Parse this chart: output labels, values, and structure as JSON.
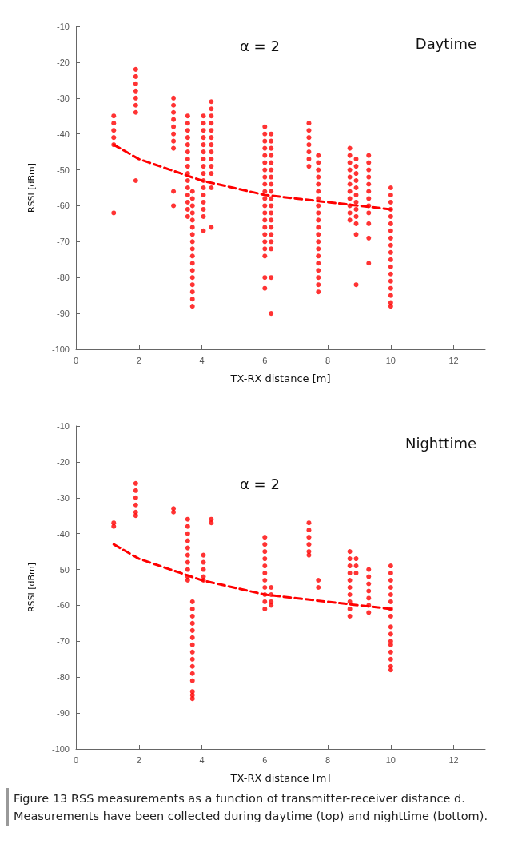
{
  "chart_data": [
    {
      "type": "scatter",
      "title": "Daytime",
      "xlabel": "TX-RX distance [m]",
      "ylabel": "RSSI [dBm]",
      "annotations": [
        "α = 2"
      ],
      "xlim": [
        0,
        13
      ],
      "xticks": [
        0,
        2,
        4,
        6,
        8,
        10,
        12
      ],
      "ylim": [
        -100,
        -10
      ],
      "yticks": [
        -100,
        -90,
        -80,
        -70,
        -60,
        -50,
        -40,
        -30,
        -20,
        -10
      ],
      "grid": false,
      "series": [
        {
          "marker": "circle",
          "color": "#ff0000",
          "x": [
            1.2,
            1.2,
            1.2,
            1.2,
            1.2,
            1.2,
            1.9,
            1.9,
            1.9,
            1.9,
            1.9,
            1.9,
            1.9,
            1.9,
            3.1,
            3.1,
            3.1,
            3.1,
            3.1,
            3.1,
            3.1,
            3.1,
            3.1,
            3.1,
            3.55,
            3.55,
            3.55,
            3.55,
            3.55,
            3.55,
            3.55,
            3.55,
            3.55,
            3.55,
            3.55,
            3.55,
            3.55,
            3.55,
            3.55,
            3.7,
            3.7,
            3.7,
            3.7,
            3.7,
            3.7,
            3.7,
            3.7,
            3.7,
            3.7,
            3.7,
            3.7,
            3.7,
            3.7,
            3.7,
            3.7,
            3.7,
            4.05,
            4.05,
            4.05,
            4.05,
            4.05,
            4.05,
            4.05,
            4.05,
            4.05,
            4.05,
            4.05,
            4.05,
            4.05,
            4.05,
            4.05,
            4.05,
            4.3,
            4.3,
            4.3,
            4.3,
            4.3,
            4.3,
            4.3,
            4.3,
            4.3,
            4.3,
            4.3,
            4.3,
            4.3,
            6,
            6,
            6,
            6,
            6,
            6,
            6,
            6,
            6,
            6,
            6,
            6,
            6,
            6,
            6,
            6,
            6,
            6,
            6,
            6,
            6,
            6.2,
            6.2,
            6.2,
            6.2,
            6.2,
            6.2,
            6.2,
            6.2,
            6.2,
            6.2,
            6.2,
            6.2,
            6.2,
            6.2,
            6.2,
            6.2,
            6.2,
            6.2,
            6.2,
            7.4,
            7.4,
            7.4,
            7.4,
            7.4,
            7.4,
            7.4,
            7.7,
            7.7,
            7.7,
            7.7,
            7.7,
            7.7,
            7.7,
            7.7,
            7.7,
            7.7,
            7.7,
            7.7,
            7.7,
            7.7,
            7.7,
            7.7,
            7.7,
            7.7,
            7.7,
            7.7,
            8.7,
            8.7,
            8.7,
            8.7,
            8.7,
            8.7,
            8.7,
            8.7,
            8.7,
            8.7,
            8.7,
            8.9,
            8.9,
            8.9,
            8.9,
            8.9,
            8.9,
            8.9,
            8.9,
            8.9,
            8.9,
            8.9,
            8.9,
            9.3,
            9.3,
            9.3,
            9.3,
            9.3,
            9.3,
            9.3,
            9.3,
            9.3,
            9.3,
            9.3,
            9.3,
            10,
            10,
            10,
            10,
            10,
            10,
            10,
            10,
            10,
            10,
            10,
            10,
            10,
            10,
            10,
            10,
            10,
            10
          ],
          "values": [
            -35,
            -37,
            -39,
            -41,
            -43,
            -62,
            -22,
            -24,
            -26,
            -28,
            -30,
            -32,
            -34,
            -53,
            -30,
            -32,
            -34,
            -36,
            -38,
            -40,
            -42,
            -44,
            -56,
            -60,
            -35,
            -37,
            -39,
            -41,
            -43,
            -45,
            -47,
            -49,
            -51,
            -53,
            -55,
            -57,
            -59,
            -61,
            -63,
            -56,
            -58,
            -60,
            -62,
            -64,
            -66,
            -68,
            -70,
            -72,
            -74,
            -76,
            -78,
            -80,
            -82,
            -84,
            -86,
            -88,
            -35,
            -37,
            -39,
            -41,
            -43,
            -45,
            -47,
            -49,
            -51,
            -53,
            -55,
            -57,
            -59,
            -61,
            -63,
            -67,
            -31,
            -33,
            -35,
            -37,
            -39,
            -41,
            -43,
            -45,
            -47,
            -49,
            -51,
            -55,
            -66,
            -38,
            -40,
            -42,
            -44,
            -46,
            -48,
            -50,
            -52,
            -54,
            -56,
            -58,
            -60,
            -62,
            -64,
            -66,
            -68,
            -70,
            -72,
            -74,
            -80,
            -83,
            -40,
            -42,
            -44,
            -46,
            -48,
            -50,
            -52,
            -54,
            -56,
            -58,
            -60,
            -62,
            -64,
            -66,
            -68,
            -70,
            -72,
            -80,
            -90,
            -37,
            -39,
            -41,
            -43,
            -45,
            -47,
            -49,
            -46,
            -48,
            -50,
            -52,
            -54,
            -56,
            -58,
            -60,
            -62,
            -64,
            -66,
            -68,
            -70,
            -72,
            -74,
            -76,
            -78,
            -80,
            -82,
            -84,
            -44,
            -46,
            -48,
            -50,
            -52,
            -54,
            -56,
            -58,
            -60,
            -62,
            -64,
            -47,
            -49,
            -51,
            -53,
            -55,
            -57,
            -59,
            -61,
            -63,
            -65,
            -68,
            -82,
            -46,
            -48,
            -50,
            -52,
            -54,
            -56,
            -58,
            -60,
            -62,
            -65,
            -69,
            -76,
            -55,
            -57,
            -59,
            -61,
            -63,
            -65,
            -67,
            -69,
            -71,
            -73,
            -75,
            -77,
            -79,
            -81,
            -83,
            -85,
            -87,
            -88
          ]
        },
        {
          "type": "line",
          "marker": "none",
          "line_style": "dashed",
          "color": "#ff0000",
          "x": [
            1.2,
            2,
            3,
            4,
            5,
            6,
            7,
            8,
            9,
            10
          ],
          "values": [
            -43,
            -47,
            -50,
            -53,
            -55,
            -57,
            -58,
            -59,
            -60,
            -61
          ]
        }
      ]
    },
    {
      "type": "scatter",
      "title": "Nighttime",
      "xlabel": "TX-RX distance [m]",
      "ylabel": "RSSI [dBm]",
      "annotations": [
        "α = 2",
        "Figure 13 RSS measurements as a function of transmitter-receiver distance d. Measurements have been collected during daytime (top) and nighttime (bottom)."
      ],
      "xlim": [
        0,
        13
      ],
      "xticks": [
        0,
        2,
        4,
        6,
        8,
        10,
        12
      ],
      "ylim": [
        -100,
        -10
      ],
      "yticks": [
        -100,
        -90,
        -80,
        -70,
        -60,
        -50,
        -40,
        -30,
        -20,
        -10
      ],
      "grid": false,
      "series": [
        {
          "marker": "circle",
          "color": "#ff0000",
          "x": [
            1.2,
            1.2,
            1.9,
            1.9,
            1.9,
            1.9,
            1.9,
            1.9,
            3.1,
            3.1,
            3.55,
            3.55,
            3.55,
            3.55,
            3.55,
            3.55,
            3.55,
            3.55,
            3.55,
            3.55,
            3.7,
            3.7,
            3.7,
            3.7,
            3.7,
            3.7,
            3.7,
            3.7,
            3.7,
            3.7,
            3.7,
            3.7,
            3.7,
            3.7,
            3.7,
            4.05,
            4.05,
            4.05,
            4.05,
            4.05,
            4.3,
            4.3,
            6,
            6,
            6,
            6,
            6,
            6,
            6,
            6,
            6,
            6,
            6,
            6.2,
            6.2,
            6.2,
            6.2,
            7.4,
            7.4,
            7.4,
            7.4,
            7.4,
            7.4,
            7.7,
            7.7,
            8.7,
            8.7,
            8.7,
            8.7,
            8.7,
            8.7,
            8.7,
            8.7,
            8.7,
            8.7,
            8.9,
            8.9,
            8.9,
            9.3,
            9.3,
            9.3,
            9.3,
            9.3,
            9.3,
            9.3,
            10,
            10,
            10,
            10,
            10,
            10,
            10,
            10,
            10,
            10,
            10,
            10,
            10,
            10,
            10,
            10
          ],
          "values": [
            -37,
            -38,
            -26,
            -28,
            -30,
            -32,
            -34,
            -35,
            -33,
            -34,
            -36,
            -38,
            -40,
            -42,
            -44,
            -46,
            -48,
            -50,
            -52,
            -53,
            -59,
            -61,
            -63,
            -65,
            -67,
            -69,
            -71,
            -73,
            -75,
            -77,
            -79,
            -81,
            -84,
            -85,
            -86,
            -46,
            -48,
            -50,
            -52,
            -53,
            -36,
            -37,
            -41,
            -43,
            -45,
            -47,
            -49,
            -51,
            -53,
            -55,
            -57,
            -59,
            -61,
            -55,
            -57,
            -59,
            -60,
            -37,
            -39,
            -41,
            -43,
            -45,
            -46,
            -53,
            -55,
            -45,
            -47,
            -49,
            -51,
            -53,
            -55,
            -57,
            -59,
            -61,
            -63,
            -47,
            -49,
            -51,
            -50,
            -52,
            -54,
            -56,
            -58,
            -60,
            -62,
            -49,
            -51,
            -53,
            -55,
            -57,
            -59,
            -61,
            -63,
            -66,
            -68,
            -70,
            -71,
            -73,
            -75,
            -77,
            -78
          ]
        },
        {
          "type": "line",
          "marker": "none",
          "line_style": "dashed",
          "color": "#ff0000",
          "x": [
            1.2,
            2,
            3,
            4,
            5,
            6,
            7,
            8,
            9,
            10
          ],
          "values": [
            -43,
            -47,
            -50,
            -53,
            -55,
            -57,
            -58,
            -59,
            -60,
            -61
          ]
        }
      ]
    }
  ]
}
